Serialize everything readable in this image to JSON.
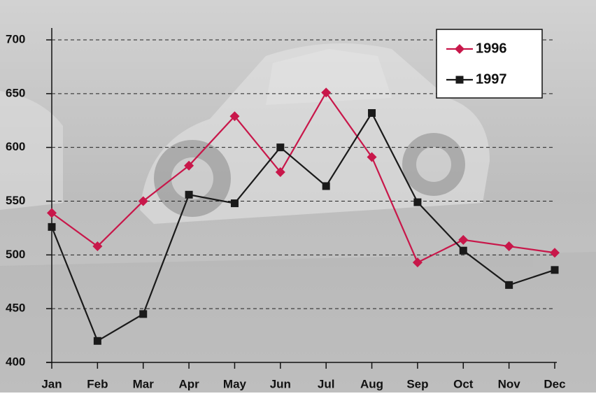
{
  "chart_data": {
    "type": "line",
    "categories": [
      "Jan",
      "Feb",
      "Mar",
      "Apr",
      "May",
      "Jun",
      "Jul",
      "Aug",
      "Sep",
      "Oct",
      "Nov",
      "Dec"
    ],
    "series": [
      {
        "name": "1996",
        "color": "#c8174a",
        "marker": "diamond",
        "values": [
          539,
          508,
          550,
          583,
          629,
          577,
          651,
          591,
          493,
          514,
          508,
          502
        ]
      },
      {
        "name": "1997",
        "color": "#1a1a1a",
        "marker": "square",
        "values": [
          526,
          420,
          445,
          556,
          548,
          600,
          564,
          632,
          549,
          504,
          472,
          486
        ]
      }
    ],
    "ylim": [
      400,
      700
    ],
    "yticks": [
      400,
      450,
      500,
      550,
      600,
      650,
      700
    ],
    "grid": true,
    "legend": "upper right"
  }
}
